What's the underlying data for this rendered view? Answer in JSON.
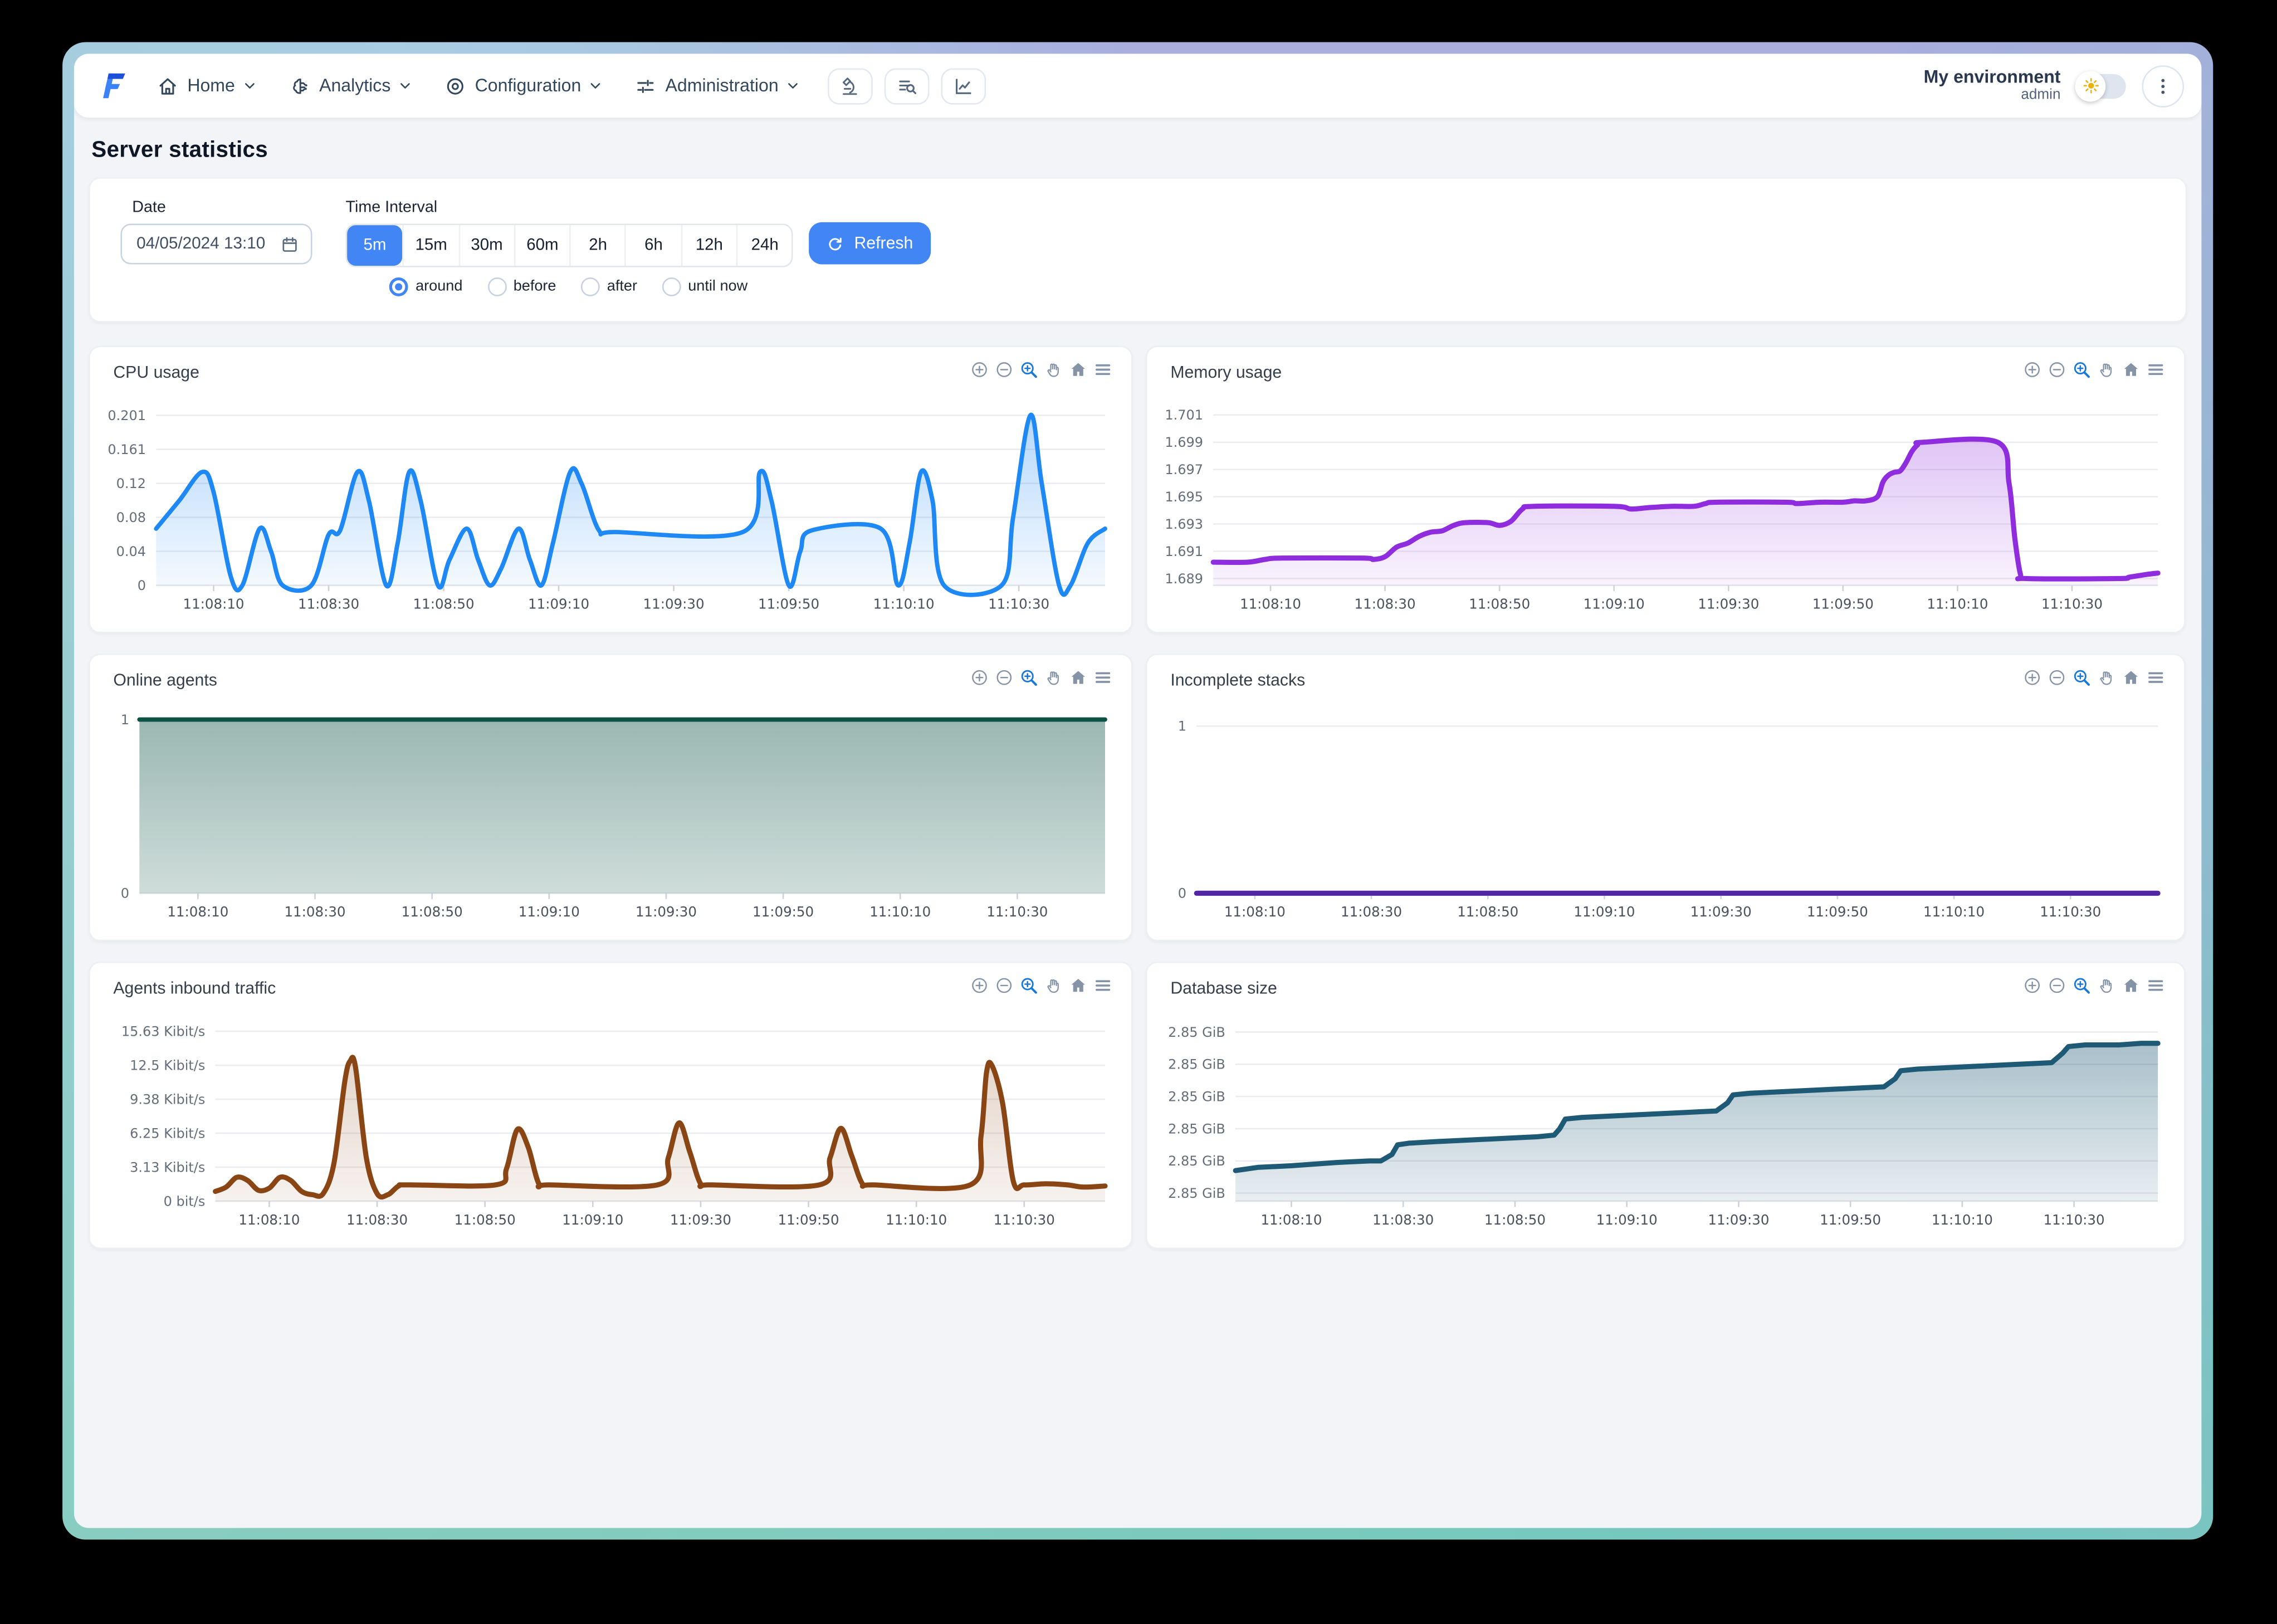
{
  "navbar": {
    "logo": "flowable-logo",
    "menus": [
      {
        "label": "Home",
        "icon": "home-icon"
      },
      {
        "label": "Analytics",
        "icon": "analytics-icon"
      },
      {
        "label": "Configuration",
        "icon": "configuration-icon"
      },
      {
        "label": "Administration",
        "icon": "administration-icon"
      }
    ],
    "tool_buttons": [
      {
        "icon": "microscope-icon"
      },
      {
        "icon": "list-search-icon"
      },
      {
        "icon": "line-chart-icon"
      }
    ],
    "environment": {
      "name": "My environment",
      "role": "admin"
    },
    "theme_toggle": {
      "mode": "light",
      "icon": "sun-icon"
    },
    "more_menu": {
      "icon": "kebab-menu-icon"
    }
  },
  "page": {
    "title": "Server statistics"
  },
  "filters": {
    "date": {
      "label": "Date",
      "value": "04/05/2024 13:10",
      "icon": "calendar-icon"
    },
    "time_interval": {
      "label": "Time Interval",
      "options": [
        "5m",
        "15m",
        "30m",
        "60m",
        "2h",
        "6h",
        "12h",
        "24h"
      ],
      "selected": "5m"
    },
    "modes": [
      {
        "label": "around",
        "selected": true
      },
      {
        "label": "before",
        "selected": false
      },
      {
        "label": "after",
        "selected": false
      },
      {
        "label": "until now",
        "selected": false
      }
    ],
    "refresh_label": "Refresh"
  },
  "colors": {
    "accent": "#4286f5",
    "toolbar_icon": "#8493a5",
    "toolbar_active": "#1778d9"
  },
  "chart_toolbar_icons": [
    "zoom-in-icon",
    "zoom-out-icon",
    "box-zoom-icon",
    "pan-icon",
    "home-icon",
    "menu-icon"
  ],
  "chart_data": [
    {
      "type": "area",
      "title": "CPU usage",
      "color": "#1e88f5",
      "width": 3,
      "smooth": true,
      "area_top": "rgba(30,136,245,0.34)",
      "area_bottom": "rgba(30,136,245,0.05)",
      "ylim": [
        0,
        0.2095
      ],
      "y_ticks": [
        {
          "value": 0,
          "label": "0"
        },
        {
          "value": 0.0402,
          "label": "0.04"
        },
        {
          "value": 0.0804,
          "label": "0.08"
        },
        {
          "value": 0.1206,
          "label": "0.12"
        },
        {
          "value": 0.1608,
          "label": "0.161"
        },
        {
          "value": 0.201,
          "label": "0.201"
        }
      ],
      "xlim": [
        0,
        165
      ],
      "x_ticks": [
        {
          "s": 10,
          "label": "11:08:10"
        },
        {
          "s": 30,
          "label": "11:08:30"
        },
        {
          "s": 50,
          "label": "11:08:50"
        },
        {
          "s": 70,
          "label": "11:09:10"
        },
        {
          "s": 90,
          "label": "11:09:30"
        },
        {
          "s": 110,
          "label": "11:09:50"
        },
        {
          "s": 130,
          "label": "11:10:10"
        },
        {
          "s": 150,
          "label": "11:10:30"
        }
      ],
      "points": [
        [
          0,
          0.067
        ],
        [
          4,
          0.1
        ],
        [
          8,
          0.134
        ],
        [
          10,
          0.11
        ],
        [
          13,
          0.01
        ],
        [
          15,
          0
        ],
        [
          18,
          0.067
        ],
        [
          20,
          0.04
        ],
        [
          22,
          0
        ],
        [
          27,
          0
        ],
        [
          30,
          0.06
        ],
        [
          32,
          0.065
        ],
        [
          35,
          0.134
        ],
        [
          37,
          0.1
        ],
        [
          40,
          0
        ],
        [
          42,
          0.05
        ],
        [
          44,
          0.134
        ],
        [
          46,
          0.1
        ],
        [
          49,
          0
        ],
        [
          51,
          0.03
        ],
        [
          54,
          0.067
        ],
        [
          56,
          0.03
        ],
        [
          58,
          0
        ],
        [
          60,
          0.02
        ],
        [
          63,
          0.067
        ],
        [
          65,
          0.03
        ],
        [
          67,
          0
        ],
        [
          69,
          0.05
        ],
        [
          72,
          0.134
        ],
        [
          74,
          0.12
        ],
        [
          77,
          0.065
        ],
        [
          80,
          0.063
        ],
        [
          102,
          0.063
        ],
        [
          105,
          0.134
        ],
        [
          107,
          0.1
        ],
        [
          110,
          0
        ],
        [
          112,
          0.04
        ],
        [
          114,
          0.065
        ],
        [
          126,
          0.067
        ],
        [
          129,
          0
        ],
        [
          131,
          0.05
        ],
        [
          133,
          0.134
        ],
        [
          135,
          0.1
        ],
        [
          137,
          0
        ],
        [
          147,
          0
        ],
        [
          149,
          0.08
        ],
        [
          152,
          0.201
        ],
        [
          154,
          0.12
        ],
        [
          157,
          0
        ],
        [
          159,
          0
        ],
        [
          162,
          0.05
        ],
        [
          165,
          0.067
        ]
      ]
    },
    {
      "type": "area",
      "title": "Memory usage",
      "color": "#8f2cdd",
      "width": 3.5,
      "smooth": true,
      "area_top": "rgba(143,44,221,0.32)",
      "area_bottom": "rgba(143,44,221,0.06)",
      "ylim": [
        1.6885,
        1.7015
      ],
      "y_ticks": [
        {
          "value": 1.689,
          "label": "1.689"
        },
        {
          "value": 1.691,
          "label": "1.691"
        },
        {
          "value": 1.693,
          "label": "1.693"
        },
        {
          "value": 1.695,
          "label": "1.695"
        },
        {
          "value": 1.697,
          "label": "1.697"
        },
        {
          "value": 1.699,
          "label": "1.699"
        },
        {
          "value": 1.701,
          "label": "1.701"
        }
      ],
      "xlim": [
        0,
        165
      ],
      "x_ticks": [
        {
          "s": 10,
          "label": "11:08:10"
        },
        {
          "s": 30,
          "label": "11:08:30"
        },
        {
          "s": 50,
          "label": "11:08:50"
        },
        {
          "s": 70,
          "label": "11:09:10"
        },
        {
          "s": 90,
          "label": "11:09:30"
        },
        {
          "s": 110,
          "label": "11:09:50"
        },
        {
          "s": 130,
          "label": "11:10:10"
        },
        {
          "s": 150,
          "label": "11:10:30"
        }
      ],
      "points": [
        [
          0,
          1.6902
        ],
        [
          6,
          1.6902
        ],
        [
          9,
          1.6904
        ],
        [
          12,
          1.6905
        ],
        [
          26,
          1.6905
        ],
        [
          28,
          1.6904
        ],
        [
          30,
          1.6906
        ],
        [
          32,
          1.6913
        ],
        [
          34,
          1.6916
        ],
        [
          36,
          1.6921
        ],
        [
          38,
          1.6924
        ],
        [
          40,
          1.6925
        ],
        [
          42,
          1.6929
        ],
        [
          44,
          1.6931
        ],
        [
          48,
          1.6931
        ],
        [
          50,
          1.6929
        ],
        [
          52,
          1.6932
        ],
        [
          54,
          1.6941
        ],
        [
          56,
          1.6943
        ],
        [
          70,
          1.6943
        ],
        [
          73,
          1.6941
        ],
        [
          76,
          1.6942
        ],
        [
          80,
          1.6943
        ],
        [
          84,
          1.6943
        ],
        [
          86,
          1.6945
        ],
        [
          88,
          1.6946
        ],
        [
          100,
          1.6946
        ],
        [
          102,
          1.6945
        ],
        [
          106,
          1.6946
        ],
        [
          110,
          1.6946
        ],
        [
          112,
          1.6947
        ],
        [
          114,
          1.6947
        ],
        [
          116,
          1.695
        ],
        [
          117,
          1.6961
        ],
        [
          118,
          1.6966
        ],
        [
          119,
          1.6968
        ],
        [
          120,
          1.6969
        ],
        [
          121,
          1.6975
        ],
        [
          122,
          1.6983
        ],
        [
          123,
          1.6988
        ],
        [
          124,
          1.699
        ],
        [
          137,
          1.699
        ],
        [
          139,
          1.696
        ],
        [
          140,
          1.692
        ],
        [
          141,
          1.6893
        ],
        [
          142,
          1.689
        ],
        [
          158,
          1.689
        ],
        [
          160,
          1.6891
        ],
        [
          163,
          1.6893
        ],
        [
          165,
          1.6894
        ]
      ]
    },
    {
      "type": "area",
      "title": "Online agents",
      "color": "#0d5345",
      "width": 3,
      "smooth": false,
      "area_top": "rgba(13,83,69,0.42)",
      "area_bottom": "rgba(13,83,69,0.20)",
      "ylim": [
        0,
        1.02
      ],
      "y_ticks": [
        {
          "value": 0,
          "label": "0"
        },
        {
          "value": 1,
          "label": "1"
        }
      ],
      "xlim": [
        0,
        165
      ],
      "x_ticks": [
        {
          "s": 10,
          "label": "11:08:10"
        },
        {
          "s": 30,
          "label": "11:08:30"
        },
        {
          "s": 50,
          "label": "11:08:50"
        },
        {
          "s": 70,
          "label": "11:09:10"
        },
        {
          "s": 90,
          "label": "11:09:30"
        },
        {
          "s": 110,
          "label": "11:09:50"
        },
        {
          "s": 130,
          "label": "11:10:10"
        },
        {
          "s": 150,
          "label": "11:10:30"
        }
      ],
      "points": [
        [
          0,
          1
        ],
        [
          165,
          1
        ]
      ]
    },
    {
      "type": "line",
      "title": "Incomplete stacks",
      "color": "#5226a5",
      "width": 3.5,
      "smooth": false,
      "area_top": null,
      "area_bottom": null,
      "ylim": [
        0,
        1.06
      ],
      "y_ticks": [
        {
          "value": 0,
          "label": "0"
        },
        {
          "value": 1,
          "label": "1"
        }
      ],
      "xlim": [
        0,
        165
      ],
      "x_ticks": [
        {
          "s": 10,
          "label": "11:08:10"
        },
        {
          "s": 30,
          "label": "11:08:30"
        },
        {
          "s": 50,
          "label": "11:08:50"
        },
        {
          "s": 70,
          "label": "11:09:10"
        },
        {
          "s": 90,
          "label": "11:09:30"
        },
        {
          "s": 110,
          "label": "11:09:50"
        },
        {
          "s": 130,
          "label": "11:10:10"
        },
        {
          "s": 150,
          "label": "11:10:30"
        }
      ],
      "points": [
        [
          0,
          0
        ],
        [
          165,
          0
        ]
      ]
    },
    {
      "type": "area",
      "title": "Agents inbound traffic",
      "color": "#8a4514",
      "width": 3.5,
      "smooth": true,
      "area_top": "rgba(138,69,20,0.26)",
      "area_bottom": "rgba(138,69,20,0.07)",
      "ylim": [
        0,
        16.3
      ],
      "y_ticks": [
        {
          "value": 0,
          "label": "0 bit/s"
        },
        {
          "value": 3.13,
          "label": "3.13 Kibit/s"
        },
        {
          "value": 6.25,
          "label": "6.25 Kibit/s"
        },
        {
          "value": 9.38,
          "label": "9.38 Kibit/s"
        },
        {
          "value": 12.5,
          "label": "12.5 Kibit/s"
        },
        {
          "value": 15.63,
          "label": "15.63 Kibit/s"
        }
      ],
      "xlim": [
        0,
        165
      ],
      "x_ticks": [
        {
          "s": 10,
          "label": "11:08:10"
        },
        {
          "s": 30,
          "label": "11:08:30"
        },
        {
          "s": 50,
          "label": "11:08:50"
        },
        {
          "s": 70,
          "label": "11:09:10"
        },
        {
          "s": 90,
          "label": "11:09:30"
        },
        {
          "s": 110,
          "label": "11:09:50"
        },
        {
          "s": 130,
          "label": "11:10:10"
        },
        {
          "s": 150,
          "label": "11:10:30"
        }
      ],
      "points": [
        [
          0,
          0.9
        ],
        [
          2,
          1.3
        ],
        [
          4,
          2.2
        ],
        [
          6,
          1.9
        ],
        [
          8,
          1.0
        ],
        [
          10,
          1.2
        ],
        [
          12,
          2.2
        ],
        [
          14,
          1.9
        ],
        [
          16,
          0.9
        ],
        [
          18,
          0.6
        ],
        [
          20,
          0.7
        ],
        [
          22,
          3.5
        ],
        [
          24,
          11
        ],
        [
          25,
          12.9
        ],
        [
          26,
          12.3
        ],
        [
          28,
          4
        ],
        [
          30,
          0.7
        ],
        [
          32,
          0.6
        ],
        [
          34,
          1.4
        ],
        [
          36,
          1.5
        ],
        [
          52,
          1.5
        ],
        [
          54,
          3
        ],
        [
          56,
          6.6
        ],
        [
          58,
          5
        ],
        [
          60,
          1.6
        ],
        [
          62,
          1.5
        ],
        [
          82,
          1.5
        ],
        [
          84,
          4
        ],
        [
          86,
          7.2
        ],
        [
          88,
          4.5
        ],
        [
          90,
          1.6
        ],
        [
          92,
          1.5
        ],
        [
          112,
          1.5
        ],
        [
          114,
          4
        ],
        [
          116,
          6.7
        ],
        [
          118,
          4.2
        ],
        [
          120,
          1.6
        ],
        [
          122,
          1.5
        ],
        [
          140,
          1.5
        ],
        [
          142,
          6
        ],
        [
          143,
          11.8
        ],
        [
          144,
          12.5
        ],
        [
          146,
          9
        ],
        [
          148,
          1.8
        ],
        [
          150,
          1.5
        ],
        [
          154,
          1.6
        ],
        [
          158,
          1.5
        ],
        [
          161,
          1.3
        ],
        [
          165,
          1.4
        ]
      ]
    },
    {
      "type": "area",
      "title": "Database size",
      "color": "#1e5a76",
      "width": 3.5,
      "smooth": false,
      "area_top": "rgba(30,90,118,0.42)",
      "area_bottom": "rgba(30,90,118,0.10)",
      "ylim": [
        2.8455,
        2.8565
      ],
      "y_ticks": [
        {
          "value": 2.846,
          "label": "2.85 GiB"
        },
        {
          "value": 2.848,
          "label": "2.85 GiB"
        },
        {
          "value": 2.85,
          "label": "2.85 GiB"
        },
        {
          "value": 2.852,
          "label": "2.85 GiB"
        },
        {
          "value": 2.854,
          "label": "2.85 GiB"
        },
        {
          "value": 2.856,
          "label": "2.85 GiB"
        }
      ],
      "xlim": [
        0,
        165
      ],
      "x_ticks": [
        {
          "s": 10,
          "label": "11:08:10"
        },
        {
          "s": 30,
          "label": "11:08:30"
        },
        {
          "s": 50,
          "label": "11:08:50"
        },
        {
          "s": 70,
          "label": "11:09:10"
        },
        {
          "s": 90,
          "label": "11:09:30"
        },
        {
          "s": 110,
          "label": "11:09:50"
        },
        {
          "s": 130,
          "label": "11:10:10"
        },
        {
          "s": 150,
          "label": "11:10:30"
        }
      ],
      "points": [
        [
          0,
          2.8474
        ],
        [
          4,
          2.8476
        ],
        [
          10,
          2.8477
        ],
        [
          14,
          2.8478
        ],
        [
          18,
          2.8479
        ],
        [
          24,
          2.848
        ],
        [
          26,
          2.848
        ],
        [
          28,
          2.8484
        ],
        [
          29,
          2.849
        ],
        [
          31,
          2.8491
        ],
        [
          36,
          2.8492
        ],
        [
          42,
          2.8493
        ],
        [
          48,
          2.8494
        ],
        [
          54,
          2.8495
        ],
        [
          57,
          2.8496
        ],
        [
          58,
          2.85
        ],
        [
          59,
          2.8506
        ],
        [
          62,
          2.8507
        ],
        [
          68,
          2.8508
        ],
        [
          74,
          2.8509
        ],
        [
          80,
          2.851
        ],
        [
          86,
          2.8511
        ],
        [
          88,
          2.8516
        ],
        [
          89,
          2.8521
        ],
        [
          92,
          2.8522
        ],
        [
          98,
          2.8523
        ],
        [
          104,
          2.8524
        ],
        [
          110,
          2.8525
        ],
        [
          116,
          2.8526
        ],
        [
          118,
          2.8531
        ],
        [
          119,
          2.8536
        ],
        [
          122,
          2.8537
        ],
        [
          128,
          2.8538
        ],
        [
          134,
          2.8539
        ],
        [
          140,
          2.854
        ],
        [
          146,
          2.8541
        ],
        [
          148,
          2.8547
        ],
        [
          149,
          2.8551
        ],
        [
          152,
          2.8552
        ],
        [
          158,
          2.8552
        ],
        [
          162,
          2.8553
        ],
        [
          165,
          2.8553
        ]
      ]
    }
  ]
}
